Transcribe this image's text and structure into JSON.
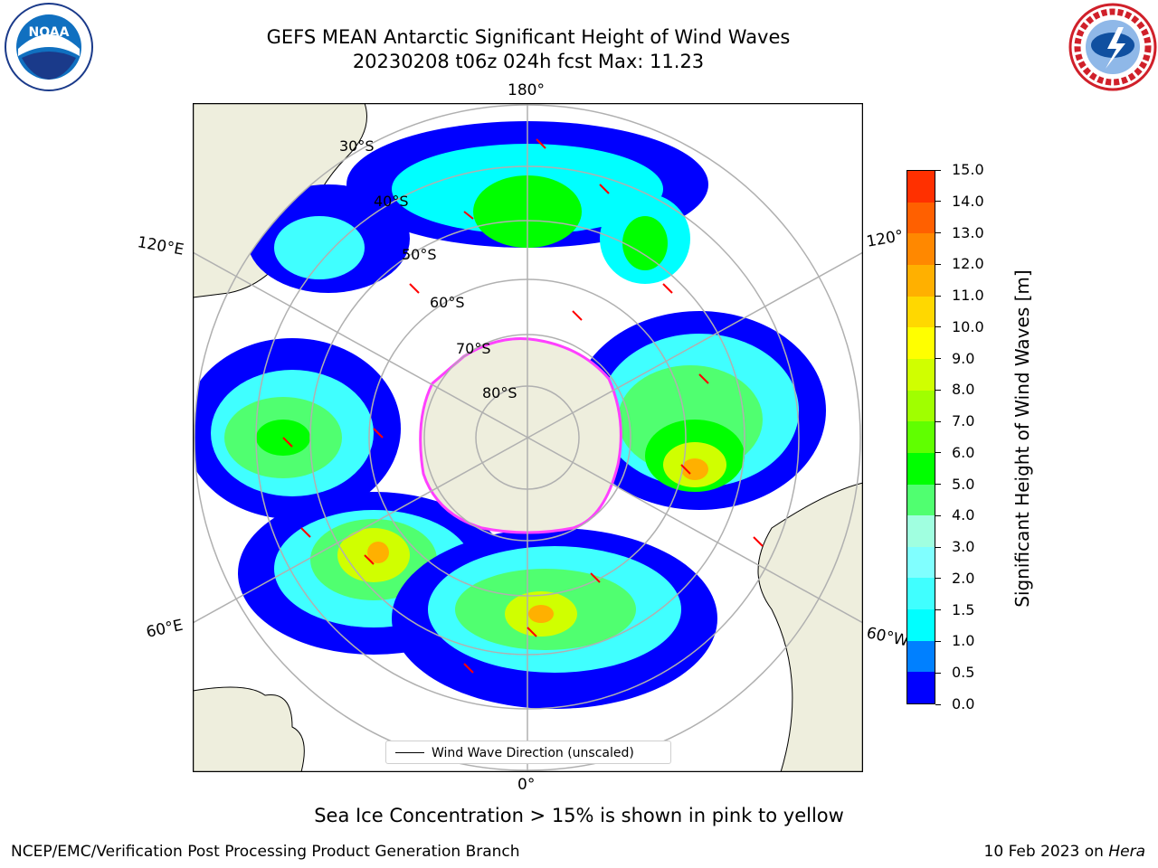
{
  "title_line1": "GEFS MEAN Antarctic Significant Height of Wind Waves",
  "title_line2": "20230208 t06z 024h fcst   Max: 11.23",
  "longitude_labels": {
    "top": "180°",
    "bottom": "0°",
    "left_upper": "120°E",
    "right_upper": "120°",
    "left_lower": "60°E",
    "right_lower": "60°W"
  },
  "latitude_labels": [
    "30°S",
    "40°S",
    "50°S",
    "60°S",
    "70°S",
    "80°S"
  ],
  "legend": {
    "entry": "Wind Wave Direction (unscaled)"
  },
  "colorbar": {
    "label": "Significant Height of Wind Waves [m]",
    "ticks": [
      "0.0",
      "0.5",
      "1.0",
      "1.5",
      "2.0",
      "3.0",
      "4.0",
      "5.0",
      "6.0",
      "7.0",
      "8.0",
      "9.0",
      "10.0",
      "11.0",
      "12.0",
      "13.0",
      "14.0",
      "15.0"
    ],
    "colors": [
      "#0000ff",
      "#0080ff",
      "#00ffff",
      "#40ffff",
      "#80ffff",
      "#a0ffe0",
      "#50ff70",
      "#00ff00",
      "#60ff00",
      "#a0ff00",
      "#d0ff00",
      "#ffff00",
      "#ffd800",
      "#ffb000",
      "#ff8800",
      "#ff6000",
      "#ff3000",
      "#ff0000"
    ]
  },
  "caption": "Sea Ice Concentration > 15% is shown in pink to yellow",
  "footer": {
    "left": "NCEP/EMC/Verification Post Processing Product Generation Branch",
    "date": "10 Feb 2023 on ",
    "host": "Hera"
  },
  "logos": {
    "noaa": "NOAA",
    "nws": "NATIONAL WEATHER SERVICE"
  },
  "colors": {
    "land": "#eeeedd",
    "ice": "#ff40ff",
    "arrow": "#ff0000",
    "grid": "#b0b0b0"
  }
}
